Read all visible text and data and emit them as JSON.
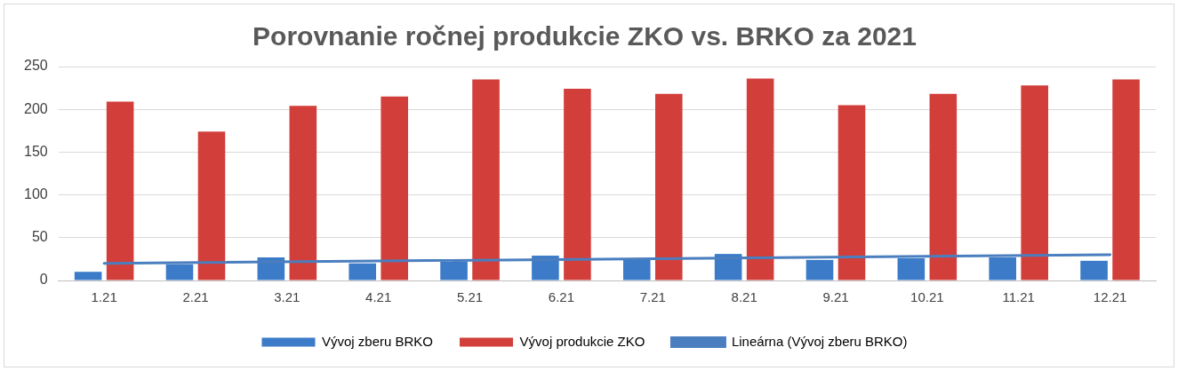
{
  "chart_data": {
    "type": "bar",
    "title": "Porovnanie ročnej produkcie ZKO vs. BRKO za 2021",
    "categories": [
      "1.21",
      "2.21",
      "3.21",
      "4.21",
      "5.21",
      "6.21",
      "7.21",
      "8.21",
      "9.21",
      "10.21",
      "11.21",
      "12.21"
    ],
    "series": [
      {
        "name": "Vývoj zberu BRKO",
        "color": "#3b7bc8",
        "values": [
          10,
          19,
          27,
          20,
          22,
          29,
          24,
          31,
          24,
          26,
          27,
          23
        ]
      },
      {
        "name": "Vývoj produkcie ZKO",
        "color": "#d23f3b",
        "values": [
          209,
          174,
          204,
          215,
          235,
          224,
          218,
          236,
          205,
          218,
          228,
          235
        ]
      },
      {
        "name": "Lineárna (Vývoj zberu BRKO)",
        "type": "line",
        "color": "#4a7ebf",
        "values": [
          20,
          null,
          null,
          null,
          null,
          null,
          null,
          null,
          null,
          null,
          null,
          30
        ]
      }
    ],
    "ylim": [
      0,
      250
    ],
    "yticks": [
      0,
      50,
      100,
      150,
      200,
      250
    ],
    "grid": "y",
    "legend": "bottom",
    "marker": "none"
  }
}
